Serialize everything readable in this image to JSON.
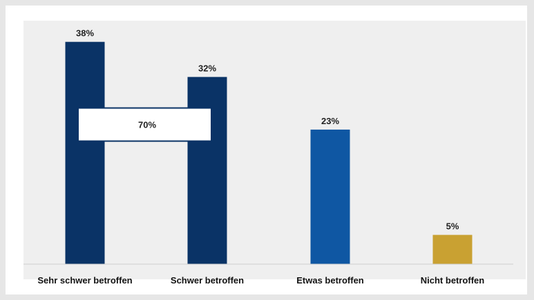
{
  "chart_data": {
    "type": "bar",
    "categories": [
      "Sehr schwer betroffen",
      "Schwer betroffen",
      "Etwas betroffen",
      "Nicht betroffen"
    ],
    "values": [
      38,
      32,
      23,
      5
    ],
    "value_labels": [
      "38%",
      "32%",
      "23%",
      "5%"
    ],
    "colors": [
      "#0a3366",
      "#0a3366",
      "#0f57a3",
      "#c9a132"
    ],
    "combined_annotation": {
      "label": "70%",
      "spans_categories": [
        "Sehr schwer betroffen",
        "Schwer betroffen"
      ]
    },
    "ylim": [
      0,
      40
    ],
    "grid": false,
    "legend": "none"
  }
}
